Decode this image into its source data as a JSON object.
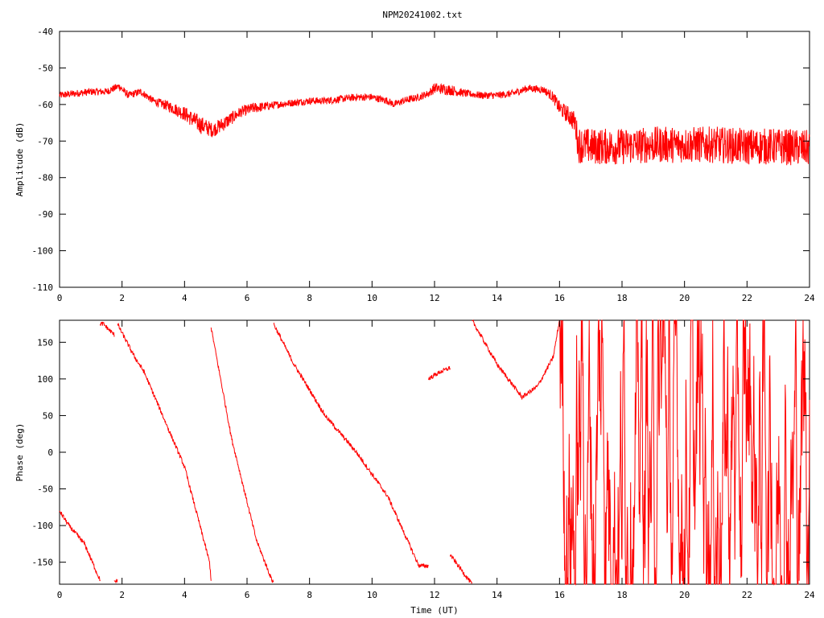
{
  "chart_data": [
    {
      "type": "line",
      "title": "NPM20241002.txt",
      "xlabel": "",
      "ylabel": "Amplitude (dB)",
      "xlim": [
        0,
        24
      ],
      "ylim": [
        -110,
        -40
      ],
      "x_ticks": [
        "0",
        "2",
        "4",
        "6",
        "8",
        "10",
        "12",
        "14",
        "16",
        "18",
        "20",
        "22",
        "24"
      ],
      "y_ticks": [
        "-40",
        "-50",
        "-60",
        "-70",
        "-80",
        "-90",
        "-100",
        "-110"
      ],
      "grid": false,
      "legend": "none",
      "series": [
        {
          "color": "#ff0000",
          "x": [
            0,
            0.5,
            1,
            1.5,
            1.9,
            2.2,
            2.6,
            3,
            3.5,
            4,
            4.5,
            4.9,
            5.3,
            5.8,
            6.2,
            7,
            7.5,
            8,
            8.5,
            9,
            9.5,
            10,
            10.5,
            10.7,
            11,
            11.5,
            11.8,
            12,
            12.5,
            13,
            13.5,
            14,
            14.5,
            15,
            15.5,
            15.8,
            16,
            16.3,
            16.5,
            16.6,
            17,
            18,
            19,
            20,
            21,
            22,
            23,
            24
          ],
          "values": [
            -57.5,
            -57,
            -56.5,
            -56.5,
            -55,
            -57.5,
            -56.5,
            -59,
            -60.5,
            -62.5,
            -65.5,
            -67,
            -65,
            -62,
            -61,
            -60,
            -59.5,
            -59,
            -59,
            -58.5,
            -58,
            -58,
            -59,
            -60,
            -59,
            -58,
            -57,
            -55.5,
            -56,
            -57,
            -57.5,
            -57.5,
            -57,
            -55.5,
            -56,
            -58,
            -61,
            -63,
            -65,
            -71,
            -71.5,
            -71.5,
            -71,
            -71,
            -71,
            -71.5,
            -71.5,
            -72
          ],
          "noise": [
            1,
            1,
            1,
            1,
            1,
            1,
            1,
            1,
            1.5,
            2,
            2.5,
            2,
            2,
            1.5,
            1.5,
            1,
            1,
            1,
            1,
            1,
            1,
            1,
            1,
            1,
            1,
            1,
            1,
            1.5,
            1.5,
            1,
            1,
            1,
            1,
            1,
            1,
            1.5,
            2,
            2.5,
            3,
            5,
            5,
            5,
            5,
            5,
            5,
            5,
            5,
            5
          ]
        }
      ]
    },
    {
      "type": "line",
      "title": "",
      "xlabel": "Time (UT)",
      "ylabel": "Phase (deg)",
      "xlim": [
        0,
        24
      ],
      "ylim": [
        -180,
        180
      ],
      "x_ticks": [
        "0",
        "2",
        "4",
        "6",
        "8",
        "10",
        "12",
        "14",
        "16",
        "18",
        "20",
        "22",
        "24"
      ],
      "y_ticks": [
        "150",
        "100",
        "50",
        "0",
        "-50",
        "-100",
        "-150"
      ],
      "grid": false,
      "legend": "none",
      "series": [
        {
          "color": "#ff0000",
          "x": [
            0,
            0.3,
            0.8,
            1.3,
            1.3,
            1.4,
            1.75,
            1.75,
            1.85,
            1.85,
            2.4,
            2.7,
            3.5,
            4,
            4.8,
            4.85,
            4.85,
            5.5,
            6.3,
            6.8,
            6.85,
            6.85,
            7.5,
            8.5,
            9.5,
            10.5,
            11.5,
            11.8,
            11.8,
            12.2,
            12.5,
            12.5,
            13.2,
            13.2,
            14,
            14.8,
            15.3,
            15.8,
            16
          ],
          "values": [
            -80,
            -100,
            -125,
            -175,
            175,
            175,
            160,
            -175,
            -175,
            175,
            130,
            110,
            30,
            -20,
            -150,
            -175,
            170,
            20,
            -120,
            -175,
            -175,
            175,
            120,
            50,
            0,
            -60,
            -155,
            -155,
            100,
            110,
            115,
            -140,
            -180,
            180,
            120,
            75,
            90,
            130,
            180
          ]
        }
      ]
    }
  ]
}
